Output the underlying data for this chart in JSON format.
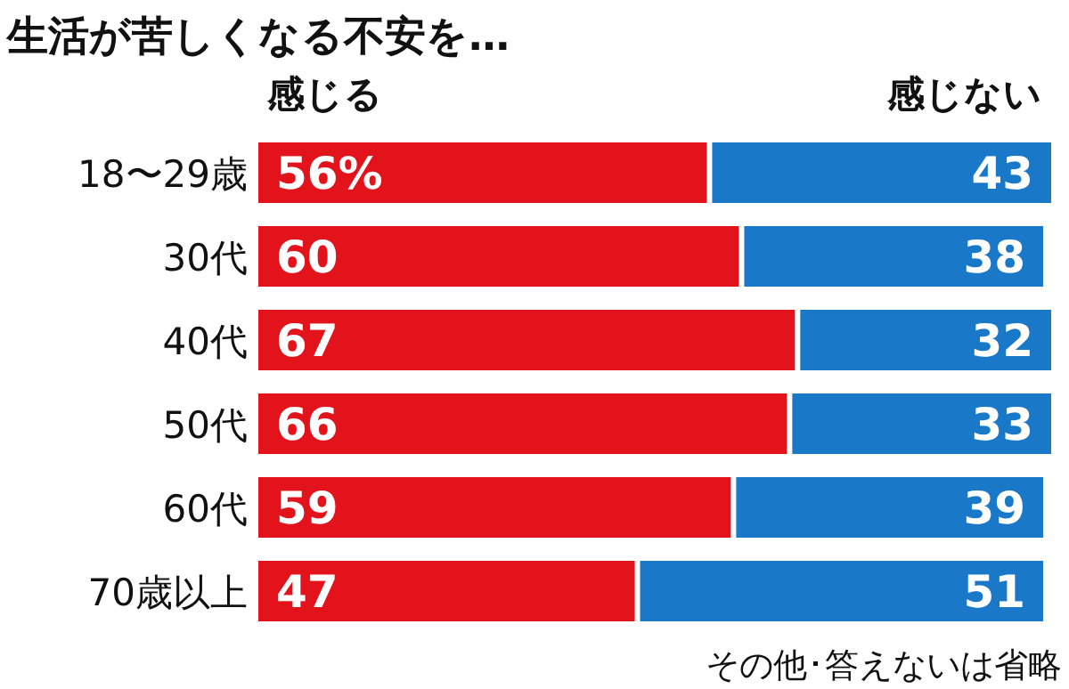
{
  "chart_data": {
    "type": "bar",
    "orientation": "horizontal",
    "title": "生活が苦しくなる不安を…",
    "categories": [
      "18〜29歳",
      "30代",
      "40代",
      "50代",
      "60代",
      "70歳以上"
    ],
    "stacked": true,
    "series": [
      {
        "name": "感じる",
        "color": "#e3131b",
        "values": [
          56,
          60,
          67,
          66,
          59,
          47
        ],
        "value_labels": [
          "56%",
          "60",
          "67",
          "66",
          "59",
          "47"
        ]
      },
      {
        "name": "感じない",
        "color": "#1a78c8",
        "values": [
          43,
          38,
          32,
          33,
          39,
          51
        ],
        "value_labels": [
          "43",
          "38",
          "32",
          "33",
          "39",
          "51"
        ]
      }
    ],
    "annotations": [
      "その他･答えないは省略"
    ]
  }
}
